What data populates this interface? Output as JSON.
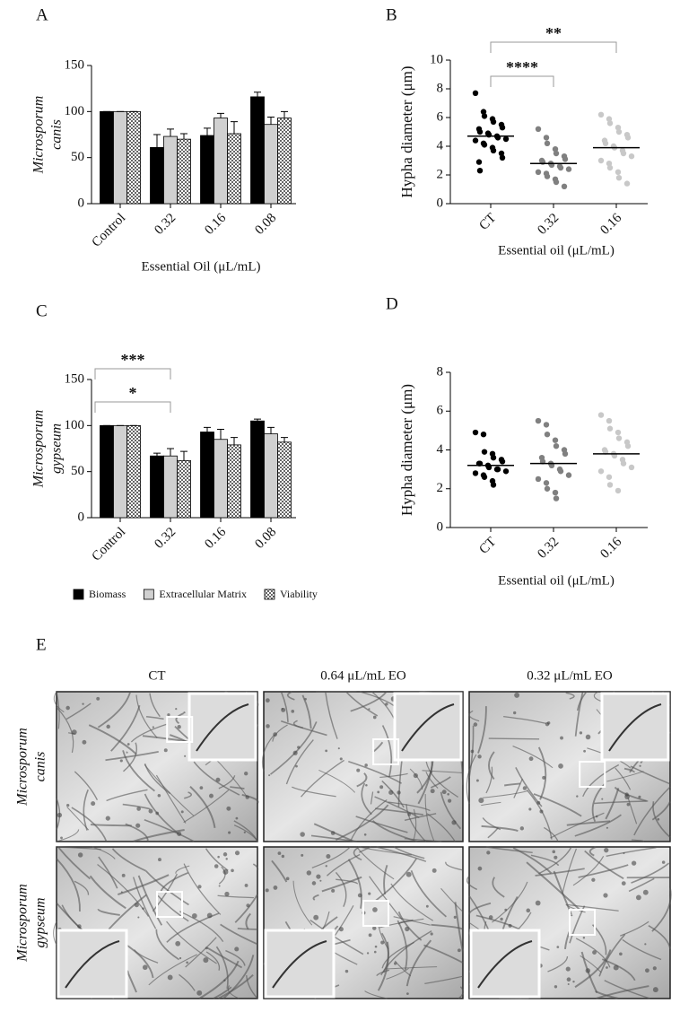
{
  "chart_data": [
    {
      "type": "bar",
      "label": "A",
      "ylabel_lines": [
        "Microsporum",
        "canis"
      ],
      "xlabel": "Essential Oil (μL/mL)",
      "categories": [
        "Control",
        "0.32",
        "0.16",
        "0.08"
      ],
      "ylim": [
        0,
        150
      ],
      "yticks": [
        0,
        50,
        100,
        150
      ],
      "series": [
        {
          "color": "#000000",
          "pattern": false,
          "values": [
            100,
            61,
            74,
            116
          ],
          "errors": [
            0,
            14,
            8,
            5
          ]
        },
        {
          "color": "#d0d0d0",
          "pattern": false,
          "values": [
            100,
            73,
            93,
            86
          ],
          "errors": [
            0,
            8,
            5,
            8
          ]
        },
        {
          "color": "#9a9a9a",
          "pattern": true,
          "values": [
            100,
            70,
            76,
            93
          ],
          "errors": [
            0,
            6,
            13,
            7
          ]
        }
      ]
    },
    {
      "type": "strip",
      "label": "B",
      "ylabel": "Hypha diameter (μm)",
      "xlabel": "Essential oil (μL/mL)",
      "categories": [
        "CT",
        "0.32",
        "0.16"
      ],
      "ylim": [
        0,
        10
      ],
      "yticks": [
        0,
        2,
        4,
        6,
        8,
        10
      ],
      "series": [
        {
          "color": "#000000",
          "mean": 4.7,
          "values": [
            7.7,
            6.4,
            6.1,
            5.9,
            5.7,
            5.5,
            5.3,
            5.2,
            5.0,
            4.9,
            4.8,
            4.7,
            4.6,
            4.5,
            4.4,
            4.2,
            4.1,
            3.9,
            3.7,
            3.5,
            3.2,
            2.9,
            2.3
          ]
        },
        {
          "color": "#808080",
          "mean": 2.8,
          "values": [
            5.2,
            4.6,
            4.2,
            3.8,
            3.5,
            3.3,
            3.1,
            3.0,
            2.9,
            2.8,
            2.7,
            2.6,
            2.5,
            2.4,
            2.2,
            2.1,
            1.9,
            1.7,
            1.5,
            1.2
          ]
        },
        {
          "color": "#c8c8c8",
          "mean": 3.9,
          "values": [
            6.2,
            5.9,
            5.6,
            5.3,
            5.0,
            4.8,
            4.6,
            4.4,
            4.2,
            4.0,
            3.9,
            3.7,
            3.5,
            3.3,
            3.0,
            2.8,
            2.5,
            2.2,
            1.8,
            1.4
          ]
        }
      ],
      "annotations": [
        {
          "text": "****",
          "from": 0,
          "to": 1
        },
        {
          "text": "**",
          "from": 0,
          "to": 2
        }
      ]
    },
    {
      "type": "bar",
      "label": "C",
      "ylabel_lines": [
        "Microsporum",
        "gypseum"
      ],
      "categories": [
        "Control",
        "0.32",
        "0.16",
        "0.08"
      ],
      "ylim": [
        0,
        150
      ],
      "yticks": [
        0,
        50,
        100,
        150
      ],
      "series": [
        {
          "name": "Biomass",
          "color": "#000000",
          "pattern": false,
          "values": [
            100,
            67,
            93,
            105
          ],
          "errors": [
            0,
            3,
            5,
            2
          ]
        },
        {
          "name": "Extracellular Matrix",
          "color": "#d0d0d0",
          "pattern": false,
          "values": [
            100,
            67,
            85,
            91
          ],
          "errors": [
            0,
            8,
            11,
            7
          ]
        },
        {
          "name": "Viability",
          "color": "#9a9a9a",
          "pattern": true,
          "values": [
            100,
            62,
            79,
            82
          ],
          "errors": [
            0,
            10,
            8,
            5
          ]
        }
      ],
      "annotations": [
        {
          "text": "***",
          "from": 0,
          "to": 1
        },
        {
          "text": "*",
          "from": 0,
          "to": 1
        }
      ]
    },
    {
      "type": "strip",
      "label": "D",
      "ylabel": "Hypha diameter (μm)",
      "xlabel": "Essential oil (μL/mL)",
      "categories": [
        "CT",
        "0.32",
        "0.16"
      ],
      "ylim": [
        0,
        8
      ],
      "yticks": [
        0,
        2,
        4,
        6,
        8
      ],
      "series": [
        {
          "color": "#000000",
          "mean": 3.2,
          "values": [
            4.9,
            4.8,
            3.9,
            3.8,
            3.6,
            3.5,
            3.4,
            3.3,
            3.3,
            3.2,
            3.1,
            3.0,
            3.0,
            2.9,
            2.8,
            2.7,
            2.6,
            2.4,
            2.2
          ]
        },
        {
          "color": "#808080",
          "mean": 3.3,
          "values": [
            5.5,
            5.3,
            4.8,
            4.5,
            4.2,
            4.0,
            3.8,
            3.6,
            3.4,
            3.3,
            3.2,
            3.0,
            2.9,
            2.7,
            2.5,
            2.3,
            2.0,
            1.8,
            1.5
          ]
        },
        {
          "color": "#c8c8c8",
          "mean": 3.8,
          "values": [
            5.8,
            5.5,
            5.1,
            4.9,
            4.6,
            4.4,
            4.2,
            4.0,
            3.9,
            3.8,
            3.7,
            3.5,
            3.3,
            3.1,
            2.9,
            2.6,
            2.2,
            1.9
          ]
        }
      ]
    }
  ],
  "panel_e": {
    "label": "E",
    "columns": [
      "CT",
      "0.64 μL/mL EO",
      "0.32 μL/mL EO"
    ],
    "rows": [
      [
        "Microsporum",
        "canis"
      ],
      [
        "Microsporum",
        "gypseum"
      ]
    ]
  }
}
